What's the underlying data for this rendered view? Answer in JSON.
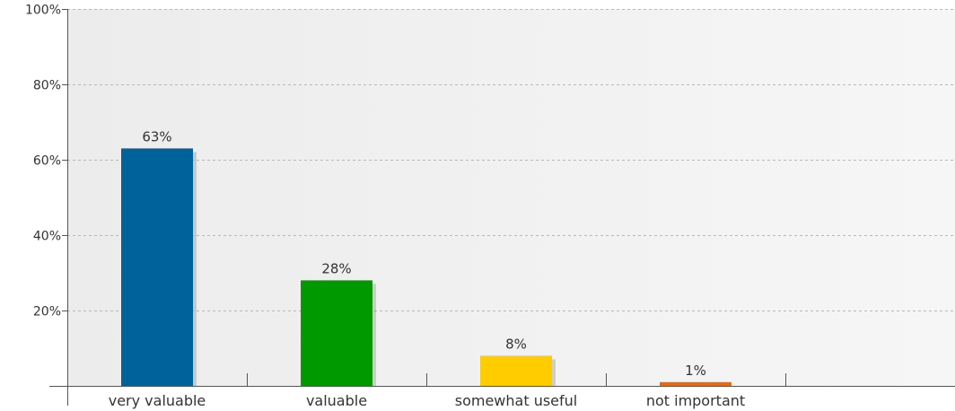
{
  "chart_data": {
    "type": "bar",
    "categories": [
      "very valuable",
      "valuable",
      "somewhat useful",
      "not important"
    ],
    "values": [
      63,
      28,
      8,
      1
    ],
    "data_labels": [
      "63%",
      "28%",
      "8%",
      "1%"
    ],
    "colors": [
      "#00629a",
      "#009900",
      "#ffcc00",
      "#e86a10"
    ],
    "title": "",
    "xlabel": "",
    "ylabel": "",
    "ylim": [
      0,
      100
    ],
    "yticks": [
      20,
      40,
      60,
      80,
      100
    ],
    "ytick_labels": [
      "20%",
      "40%",
      "60%",
      "80%",
      "100%"
    ],
    "grid": true,
    "legend": "none"
  }
}
